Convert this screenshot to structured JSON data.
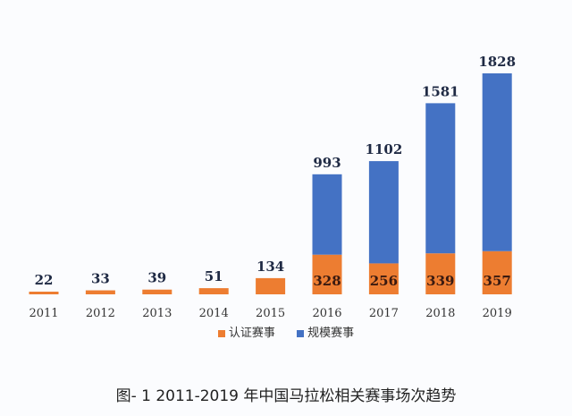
{
  "chart_data": {
    "type": "bar",
    "stacked": true,
    "title": "图- 1 2011-2019 年中国马拉松相关赛事场次趋势",
    "xlabel": "",
    "ylabel": "",
    "categories": [
      "2011",
      "2012",
      "2013",
      "2014",
      "2015",
      "2016",
      "2017",
      "2018",
      "2019"
    ],
    "series": [
      {
        "name": "认证赛事",
        "color": "#ed7d31",
        "values": [
          22,
          33,
          39,
          51,
          134,
          328,
          256,
          339,
          357
        ]
      },
      {
        "name": "规模赛事",
        "color": "#4472c4",
        "values": [
          0,
          0,
          0,
          0,
          0,
          665,
          846,
          1242,
          1471
        ]
      }
    ],
    "total_labels": [
      22,
      33,
      39,
      51,
      134,
      993,
      1102,
      1581,
      1828
    ],
    "inner_labels": [
      null,
      null,
      null,
      null,
      null,
      328,
      256,
      339,
      357
    ],
    "ylim": [
      0,
      1900
    ],
    "grid": false,
    "legend_position": "bottom"
  }
}
